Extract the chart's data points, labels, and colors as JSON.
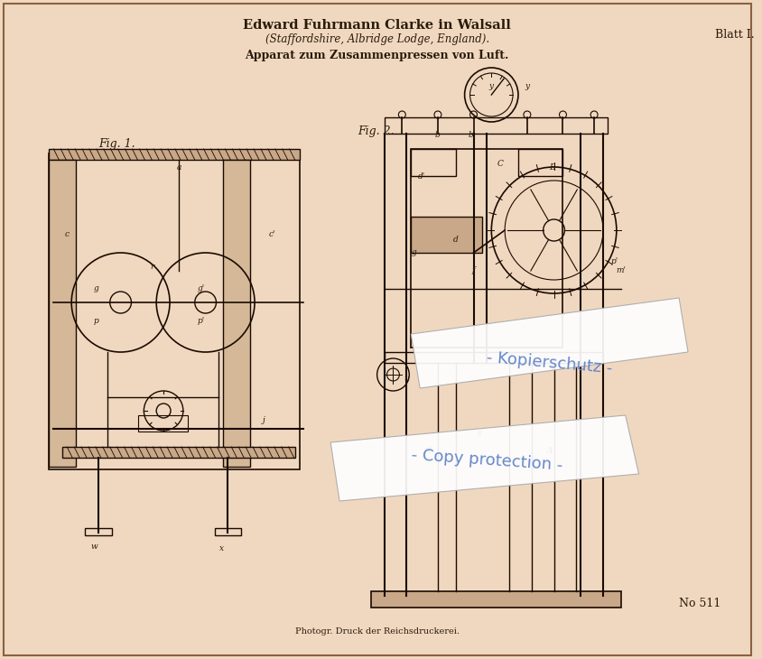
{
  "bg_color": "#f0d8c0",
  "title_line1": "Edward Fuhrmann Clarke in Walsall",
  "title_line2": "(Staffordshire, Albridge Lodge, England).",
  "title_line3": "Apparat zum Zusammenpressen von Luft.",
  "blatt_text": "Blatt I.",
  "fig1_label": "Fig. 1.",
  "fig2_label": "Fig. 2.",
  "bottom_text": "Photogr. Druck der Reichsdruckerei.",
  "watermark1": "Kopierschutz",
  "watermark2": "Copy protection",
  "number_text": "No 511",
  "watermark_color": "#6688cc",
  "text_color": "#2a1a0a",
  "line_color": "#1a0a00",
  "border_color": "#8b6040"
}
